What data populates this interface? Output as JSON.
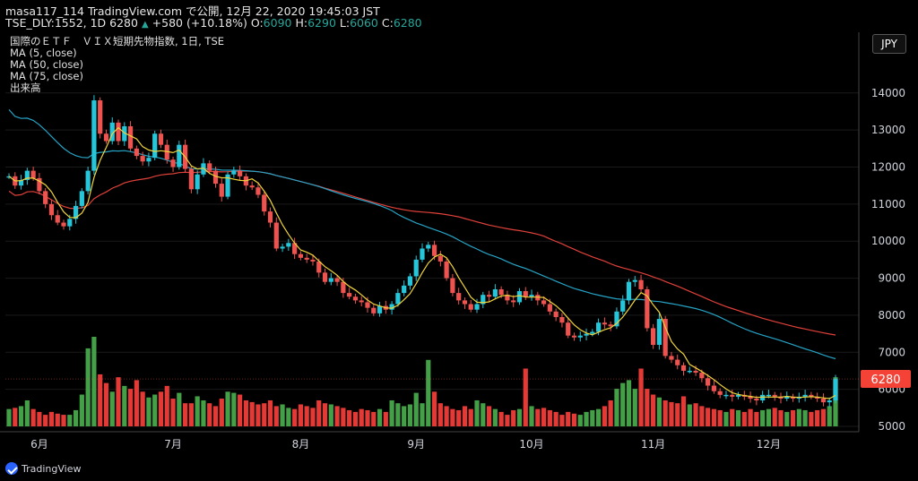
{
  "header": {
    "line1": "masa117_114 TradingView.com で公開, 12月 22, 2020 19:45:03 JST",
    "symbol": "TSE_DLY:1552, 1D 6280",
    "change_arrow": "▲",
    "change": "+580 (+10.18%)",
    "o_label": "O:",
    "o_val": "6090",
    "h_label": "H:",
    "h_val": "6290",
    "l_label": "L:",
    "l_val": "6060",
    "c_label": "C:",
    "c_val": "6280"
  },
  "legend": {
    "title": "国際のＥＴＦ　ＶＩＸ短期先物指数, 1日, TSE",
    "ma5": "MA (5, close)",
    "ma50": "MA (50, close)",
    "ma75": "MA (75, close)",
    "volume": "出来高"
  },
  "currency_badge": "JPY",
  "last_price_label": "6280",
  "footer": {
    "brand": "TradingView"
  },
  "colors": {
    "up": "#26c6da",
    "down": "#ef5350",
    "vol_up": "#43a047",
    "vol_down": "#e53935",
    "ma5": "#f0d43a",
    "ma50": "#26a3c6",
    "ma75": "#e0413a",
    "background": "#000000",
    "text": "#d1d4dc"
  },
  "chart_data": {
    "type": "candlestick",
    "y_ticks": [
      14000,
      13000,
      12000,
      11000,
      10000,
      9000,
      8000,
      7000,
      6000,
      5000
    ],
    "y_range": [
      5000,
      15300
    ],
    "x_labels": [
      "6月",
      "7月",
      "8月",
      "9月",
      "10月",
      "11月",
      "12月"
    ],
    "x_label_index": [
      5,
      27,
      48,
      67,
      86,
      106,
      125
    ],
    "last_price": 6280,
    "closes": [
      11750,
      11500,
      11650,
      11900,
      11700,
      11350,
      11000,
      10700,
      10500,
      10400,
      10600,
      10950,
      11350,
      11900,
      13800,
      12900,
      12700,
      13200,
      12700,
      13100,
      12500,
      12300,
      12150,
      12250,
      12900,
      12600,
      12200,
      12000,
      12600,
      11950,
      11400,
      11800,
      12100,
      11900,
      11550,
      11200,
      11800,
      11900,
      11750,
      11500,
      11450,
      11250,
      10800,
      10500,
      9800,
      9850,
      9950,
      9650,
      9550,
      9500,
      9450,
      9150,
      8900,
      9000,
      8900,
      8600,
      8500,
      8400,
      8350,
      8200,
      8050,
      8250,
      8150,
      8300,
      8600,
      8800,
      9050,
      9500,
      9800,
      9900,
      9600,
      9450,
      9000,
      8600,
      8400,
      8300,
      8150,
      8300,
      8550,
      8500,
      8700,
      8550,
      8400,
      8350,
      8650,
      8500,
      8550,
      8400,
      8300,
      8100,
      7950,
      7800,
      7450,
      7400,
      7450,
      7500,
      7550,
      7800,
      7750,
      7700,
      8100,
      8400,
      8900,
      8950,
      8700,
      7650,
      7200,
      7900,
      6900,
      6800,
      6650,
      6500,
      6500,
      6450,
      6300,
      6100,
      5950,
      5850,
      5850,
      5800,
      5850,
      5800,
      5750,
      5700,
      5850,
      5850,
      5800,
      5750,
      5800,
      5750,
      5800,
      5850,
      5800,
      5750,
      5650,
      5700,
      6280
    ],
    "volumes": [
      30,
      32,
      35,
      45,
      30,
      25,
      20,
      25,
      22,
      20,
      20,
      28,
      55,
      135,
      155,
      90,
      75,
      60,
      85,
      70,
      65,
      80,
      60,
      50,
      55,
      60,
      70,
      48,
      58,
      40,
      40,
      52,
      45,
      40,
      35,
      48,
      60,
      58,
      55,
      45,
      42,
      38,
      40,
      45,
      35,
      38,
      32,
      30,
      38,
      35,
      32,
      45,
      40,
      38,
      35,
      32,
      28,
      25,
      30,
      28,
      25,
      30,
      25,
      45,
      40,
      35,
      38,
      58,
      40,
      115,
      60,
      40,
      35,
      30,
      28,
      35,
      30,
      45,
      40,
      35,
      30,
      25,
      20,
      28,
      30,
      100,
      35,
      30,
      32,
      28,
      25,
      20,
      25,
      22,
      20,
      25,
      28,
      30,
      35,
      45,
      65,
      75,
      80,
      65,
      100,
      65,
      55,
      50,
      45,
      42,
      40,
      52,
      38,
      40,
      35,
      32,
      30,
      28,
      25,
      30,
      28,
      25,
      30,
      25,
      28,
      30,
      32,
      28,
      25,
      28,
      30,
      28,
      25,
      28,
      30,
      35,
      85
    ]
  }
}
